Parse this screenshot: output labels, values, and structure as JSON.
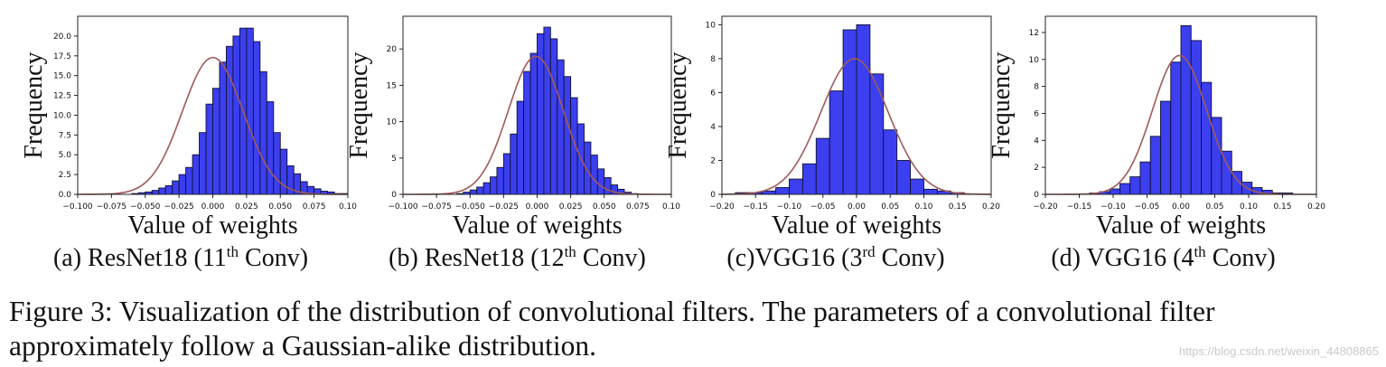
{
  "chart_data": [
    {
      "type": "bar",
      "model": "ResNet18",
      "subcaption": {
        "prefix": "(a) ResNet18 (11",
        "sup": "th",
        "suffix": " Conv)"
      },
      "xlabel": "Value of weights",
      "ylabel": "Frequency",
      "xlim": [
        -0.1,
        0.1
      ],
      "ylim": [
        0,
        22.5
      ],
      "xticks": [
        -0.1,
        -0.075,
        -0.05,
        -0.025,
        0.0,
        0.025,
        0.05,
        0.075,
        0.1
      ],
      "xtick_labels": [
        "−0.100",
        "−0.075",
        "−0.050",
        "−0.025",
        "0.000",
        "0.025",
        "0.050",
        "0.075",
        "0.10"
      ],
      "yticks": [
        0,
        2.5,
        5,
        7.5,
        10,
        12.5,
        15,
        17.5,
        20
      ],
      "ytick_labels": [
        "0.0",
        "2.5",
        "5.0",
        "7.5",
        "10.0",
        "12.5",
        "15.0",
        "17.5",
        "20.0"
      ],
      "bin_start": -0.1,
      "bin_width": 0.005,
      "bar_values": [
        0,
        0,
        0,
        0,
        0,
        0,
        0,
        0,
        0.1,
        0.2,
        0.3,
        0.5,
        0.8,
        1.1,
        1.7,
        2.5,
        3.4,
        5.0,
        7.8,
        11.4,
        13.4,
        16.7,
        18.7,
        20.0,
        21.0,
        21.0,
        19.3,
        15.5,
        11.7,
        7.8,
        5.7,
        3.6,
        2.6,
        1.6,
        1.0,
        0.7,
        0.4,
        0.3,
        0.1,
        0.1
      ],
      "gaussian": {
        "mean": 0.0,
        "std": 0.0225,
        "peak": 17.3
      }
    },
    {
      "type": "bar",
      "model": "ResNet18",
      "subcaption": {
        "prefix": "(b) ResNet18 (12",
        "sup": "th",
        "suffix": " Conv)"
      },
      "xlabel": "Value of weights",
      "ylabel": "Frequency",
      "xlim": [
        -0.1,
        0.1
      ],
      "ylim": [
        0,
        24.5
      ],
      "xticks": [
        -0.1,
        -0.075,
        -0.05,
        -0.025,
        0.0,
        0.025,
        0.05,
        0.075,
        0.1
      ],
      "xtick_labels": [
        "−0.100",
        "−0.075",
        "−0.050",
        "−0.025",
        "0.000",
        "0.025",
        "0.050",
        "0.075",
        "0.10"
      ],
      "yticks": [
        0,
        5,
        10,
        15,
        20
      ],
      "ytick_labels": [
        "0",
        "5",
        "10",
        "15",
        "20"
      ],
      "bin_start": -0.1,
      "bin_width": 0.005,
      "bar_values": [
        0,
        0,
        0,
        0,
        0,
        0,
        0,
        0,
        0.1,
        0.3,
        0.6,
        1.0,
        1.6,
        2.4,
        3.7,
        5.6,
        8.3,
        12.8,
        16.9,
        19.4,
        22.1,
        23.0,
        21.4,
        18.5,
        16.2,
        13.3,
        9.7,
        7.2,
        5.4,
        3.5,
        2.3,
        1.3,
        0.7,
        0.3,
        0.1,
        0,
        0,
        0,
        0,
        0
      ],
      "gaussian": {
        "mean": -0.001,
        "std": 0.0205,
        "peak": 19.0
      }
    },
    {
      "type": "bar",
      "model": "VGG16",
      "subcaption": {
        "prefix": "(c)VGG16 (3",
        "sup": "rd",
        "suffix": " Conv)"
      },
      "xlabel": "Value of weights",
      "ylabel": "Frequency",
      "xlim": [
        -0.2,
        0.2
      ],
      "ylim": [
        0,
        10.5
      ],
      "xticks": [
        -0.2,
        -0.15,
        -0.1,
        -0.05,
        0.0,
        0.05,
        0.1,
        0.15,
        0.2
      ],
      "xtick_labels": [
        "−0.20",
        "−0.15",
        "−0.10",
        "−0.05",
        "0.00",
        "0.05",
        "0.10",
        "0.15",
        "0.20"
      ],
      "yticks": [
        0,
        2,
        4,
        6,
        8,
        10
      ],
      "ytick_labels": [
        "0",
        "2",
        "4",
        "6",
        "8",
        "10"
      ],
      "bin_start": -0.18,
      "bin_width": 0.02,
      "bar_values": [
        0.1,
        0.1,
        0.2,
        0.4,
        0.9,
        1.8,
        3.3,
        6.1,
        9.7,
        10.0,
        7.1,
        3.8,
        2.0,
        0.9,
        0.3,
        0.2,
        0.1
      ],
      "gaussian": {
        "mean": -0.003,
        "std": 0.05,
        "peak": 8.0
      }
    },
    {
      "type": "bar",
      "model": "VGG16",
      "subcaption": {
        "prefix": "(d) VGG16 (4",
        "sup": "th",
        "suffix": " Conv)"
      },
      "xlabel": "Value of weights",
      "ylabel": "Frequency",
      "xlim": [
        -0.2,
        0.2
      ],
      "ylim": [
        0,
        13.2
      ],
      "xticks": [
        -0.2,
        -0.15,
        -0.1,
        -0.05,
        0.0,
        0.05,
        0.1,
        0.15,
        0.2
      ],
      "xtick_labels": [
        "−0.20",
        "−0.15",
        "−0.10",
        "−0.05",
        "0.00",
        "0.05",
        "0.10",
        "0.15",
        "0.20"
      ],
      "yticks": [
        0,
        2,
        4,
        6,
        8,
        10,
        12
      ],
      "ytick_labels": [
        "0",
        "2",
        "4",
        "6",
        "8",
        "10",
        "12"
      ],
      "bin_start": -0.18,
      "bin_width": 0.015,
      "bar_values": [
        0,
        0,
        0,
        0.1,
        0.2,
        0.4,
        0.8,
        1.3,
        2.4,
        4.3,
        6.9,
        9.8,
        12.5,
        11.4,
        8.3,
        5.7,
        3.2,
        1.7,
        0.9,
        0.5,
        0.3,
        0.1,
        0.1,
        0
      ],
      "gaussian": {
        "mean": -0.002,
        "std": 0.04,
        "peak": 10.3
      }
    }
  ],
  "colors": {
    "bar_fill": "#3b3ff0",
    "bar_edge": "#111133",
    "curve": "#a05a5a",
    "axis": "#222222"
  },
  "caption": "Figure 3: Visualization of the distribution of convolutional filters. The parameters of a convolutional filter approximately follow a Gaussian-alike distribution.",
  "watermark": "https://blog.csdn.net/weixin_44808865"
}
